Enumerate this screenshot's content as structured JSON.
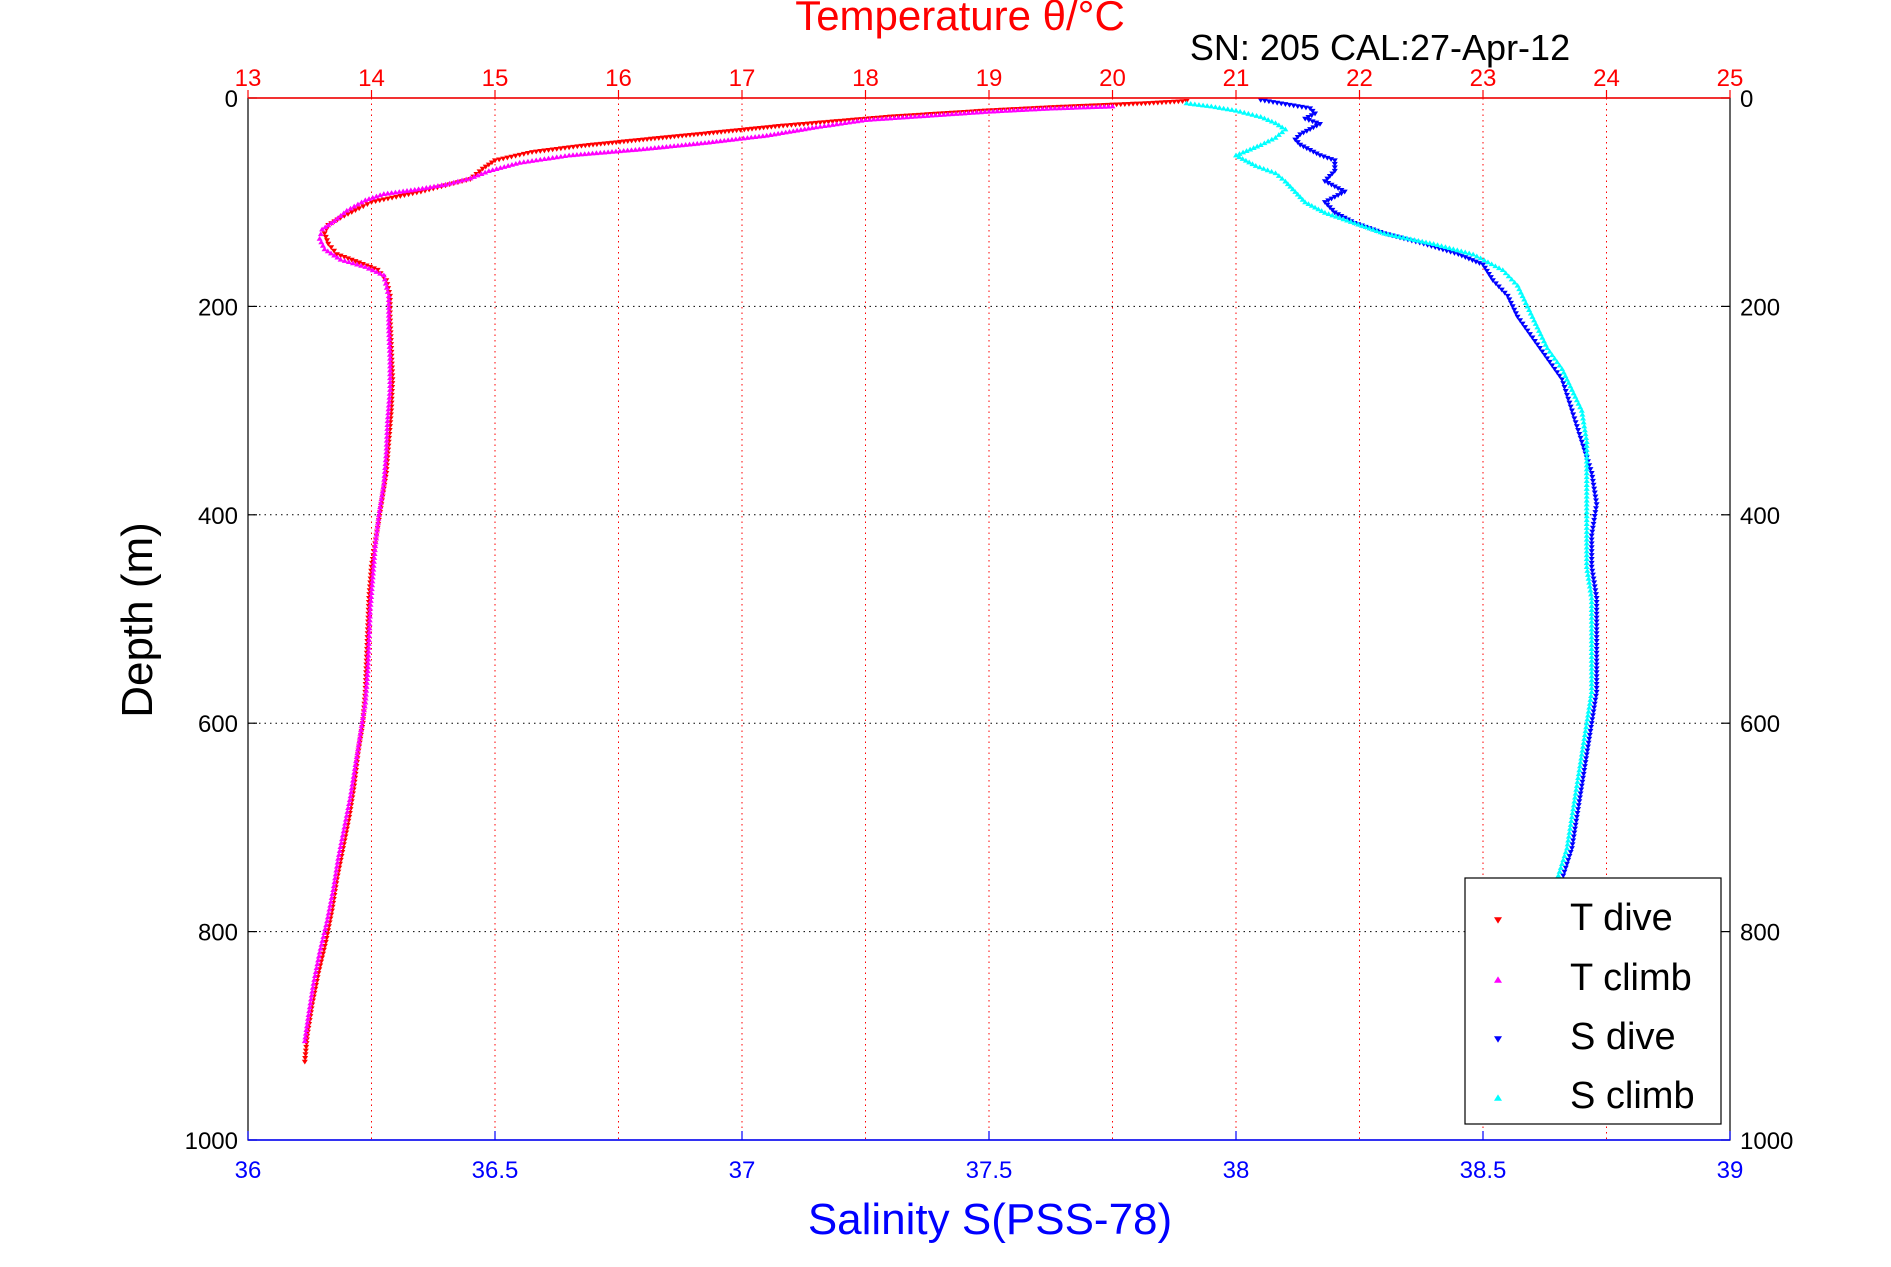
{
  "chart_data": {
    "type": "scatter",
    "title": "Temperature θ/°C",
    "subtitle": "SN: 205  CAL:27-Apr-12",
    "ylabel": "Depth (m)",
    "xlabel": "Salinity S(PSS-78)",
    "colors": {
      "temperature_axis": "#ff0000",
      "salinity_axis": "#0000ff",
      "t_dive": "#ff0000",
      "t_climb": "#ff00ff",
      "s_dive": "#0000ff",
      "s_climb": "#00ffff"
    },
    "y_axis": {
      "ylim": [
        0,
        1000
      ],
      "reversed": true,
      "ticks": [
        0,
        200,
        400,
        600,
        800,
        1000
      ],
      "tick_labels": [
        "0",
        "200",
        "400",
        "600",
        "800",
        "1000"
      ]
    },
    "x_axis_temperature": {
      "position": "top",
      "xlim": [
        13,
        25
      ],
      "ticks": [
        13,
        14,
        15,
        16,
        17,
        18,
        19,
        20,
        21,
        22,
        23,
        24,
        25
      ],
      "tick_labels": [
        "13",
        "14",
        "15",
        "16",
        "17",
        "18",
        "19",
        "20",
        "21",
        "22",
        "23",
        "24",
        "25"
      ]
    },
    "x_axis_salinity": {
      "position": "bottom",
      "xlim": [
        36,
        39
      ],
      "ticks": [
        36,
        36.5,
        37,
        37.5,
        38,
        38.5,
        39
      ],
      "tick_labels": [
        "36",
        "36.5",
        "37",
        "37.5",
        "38",
        "38.5",
        "39"
      ]
    },
    "grid": "vertical dotted at temperature ticks, horizontal dotted at depth ticks",
    "legend": {
      "position": "bottom-right",
      "entries": [
        {
          "label": "T dive",
          "marker": "triangle-down",
          "color": "#ff0000"
        },
        {
          "label": "T climb",
          "marker": "triangle-up",
          "color": "#ff00ff"
        },
        {
          "label": "S dive",
          "marker": "triangle-down",
          "color": "#0000ff"
        },
        {
          "label": "S climb",
          "marker": "triangle-up",
          "color": "#00ffff"
        }
      ]
    },
    "series": [
      {
        "name": "T dive",
        "axis": "temperature",
        "marker": "triangle-down",
        "points": [
          [
            20.6,
            3
          ],
          [
            20.3,
            5
          ],
          [
            19.9,
            7
          ],
          [
            19.5,
            9
          ],
          [
            19.0,
            12
          ],
          [
            18.6,
            15
          ],
          [
            18.2,
            18
          ],
          [
            17.8,
            22
          ],
          [
            17.3,
            27
          ],
          [
            16.8,
            33
          ],
          [
            16.2,
            40
          ],
          [
            15.7,
            46
          ],
          [
            15.3,
            52
          ],
          [
            15.0,
            60
          ],
          [
            14.9,
            68
          ],
          [
            14.8,
            78
          ],
          [
            14.6,
            84
          ],
          [
            14.4,
            90
          ],
          [
            14.2,
            95
          ],
          [
            14.0,
            100
          ],
          [
            13.9,
            106
          ],
          [
            13.75,
            115
          ],
          [
            13.65,
            122
          ],
          [
            13.62,
            130
          ],
          [
            13.65,
            140
          ],
          [
            13.72,
            150
          ],
          [
            13.9,
            158
          ],
          [
            14.05,
            165
          ],
          [
            14.12,
            175
          ],
          [
            14.15,
            190
          ],
          [
            14.15,
            210
          ],
          [
            14.16,
            240
          ],
          [
            14.17,
            270
          ],
          [
            14.16,
            300
          ],
          [
            14.14,
            330
          ],
          [
            14.12,
            360
          ],
          [
            14.08,
            390
          ],
          [
            14.04,
            420
          ],
          [
            14.0,
            450
          ],
          [
            13.98,
            480
          ],
          [
            13.97,
            510
          ],
          [
            13.96,
            540
          ],
          [
            13.95,
            570
          ],
          [
            13.93,
            600
          ],
          [
            13.89,
            630
          ],
          [
            13.86,
            660
          ],
          [
            13.82,
            690
          ],
          [
            13.77,
            720
          ],
          [
            13.72,
            750
          ],
          [
            13.68,
            780
          ],
          [
            13.63,
            810
          ],
          [
            13.57,
            840
          ],
          [
            13.52,
            870
          ],
          [
            13.48,
            900
          ],
          [
            13.46,
            925
          ]
        ]
      },
      {
        "name": "T climb",
        "axis": "temperature",
        "marker": "triangle-up",
        "points": [
          [
            20.0,
            8
          ],
          [
            19.5,
            10
          ],
          [
            19.0,
            13
          ],
          [
            18.5,
            17
          ],
          [
            18.0,
            21
          ],
          [
            17.6,
            28
          ],
          [
            17.2,
            36
          ],
          [
            16.7,
            43
          ],
          [
            16.2,
            49
          ],
          [
            15.6,
            55
          ],
          [
            15.2,
            62
          ],
          [
            14.95,
            70
          ],
          [
            14.8,
            77
          ],
          [
            14.6,
            83
          ],
          [
            14.35,
            88
          ],
          [
            14.1,
            92
          ],
          [
            13.95,
            98
          ],
          [
            13.8,
            108
          ],
          [
            13.7,
            118
          ],
          [
            13.6,
            126
          ],
          [
            13.58,
            135
          ],
          [
            13.62,
            145
          ],
          [
            13.75,
            155
          ],
          [
            13.95,
            162
          ],
          [
            14.1,
            170
          ],
          [
            14.14,
            190
          ],
          [
            14.14,
            220
          ],
          [
            14.15,
            250
          ],
          [
            14.15,
            280
          ],
          [
            14.13,
            310
          ],
          [
            14.12,
            340
          ],
          [
            14.1,
            370
          ],
          [
            14.06,
            400
          ],
          [
            14.03,
            430
          ],
          [
            14.01,
            460
          ],
          [
            13.99,
            490
          ],
          [
            13.98,
            520
          ],
          [
            13.97,
            550
          ],
          [
            13.95,
            580
          ],
          [
            13.91,
            610
          ],
          [
            13.87,
            640
          ],
          [
            13.83,
            670
          ],
          [
            13.78,
            700
          ],
          [
            13.73,
            730
          ],
          [
            13.69,
            760
          ],
          [
            13.64,
            790
          ],
          [
            13.58,
            820
          ],
          [
            13.53,
            850
          ],
          [
            13.49,
            880
          ],
          [
            13.46,
            905
          ]
        ]
      },
      {
        "name": "S dive",
        "axis": "salinity",
        "marker": "triangle-down",
        "points": [
          [
            38.05,
            2
          ],
          [
            38.1,
            6
          ],
          [
            38.15,
            10
          ],
          [
            38.16,
            15
          ],
          [
            38.14,
            20
          ],
          [
            38.17,
            25
          ],
          [
            38.15,
            30
          ],
          [
            38.13,
            35
          ],
          [
            38.12,
            40
          ],
          [
            38.13,
            45
          ],
          [
            38.15,
            50
          ],
          [
            38.17,
            55
          ],
          [
            38.2,
            60
          ],
          [
            38.2,
            70
          ],
          [
            38.18,
            80
          ],
          [
            38.22,
            90
          ],
          [
            38.18,
            100
          ],
          [
            38.2,
            110
          ],
          [
            38.24,
            120
          ],
          [
            38.3,
            130
          ],
          [
            38.38,
            140
          ],
          [
            38.45,
            150
          ],
          [
            38.5,
            160
          ],
          [
            38.52,
            175
          ],
          [
            38.55,
            190
          ],
          [
            38.57,
            210
          ],
          [
            38.6,
            230
          ],
          [
            38.63,
            250
          ],
          [
            38.66,
            270
          ],
          [
            38.68,
            300
          ],
          [
            38.7,
            330
          ],
          [
            38.72,
            360
          ],
          [
            38.73,
            390
          ],
          [
            38.72,
            420
          ],
          [
            38.72,
            450
          ],
          [
            38.73,
            480
          ],
          [
            38.73,
            510
          ],
          [
            38.73,
            540
          ],
          [
            38.73,
            570
          ],
          [
            38.72,
            600
          ],
          [
            38.71,
            630
          ],
          [
            38.7,
            660
          ],
          [
            38.69,
            690
          ],
          [
            38.68,
            720
          ],
          [
            38.66,
            750
          ]
        ]
      },
      {
        "name": "S climb",
        "axis": "salinity",
        "marker": "triangle-up",
        "points": [
          [
            37.9,
            5
          ],
          [
            37.95,
            8
          ],
          [
            38.0,
            12
          ],
          [
            38.05,
            18
          ],
          [
            38.08,
            24
          ],
          [
            38.1,
            30
          ],
          [
            38.08,
            38
          ],
          [
            38.05,
            45
          ],
          [
            38.0,
            55
          ],
          [
            38.04,
            65
          ],
          [
            38.08,
            72
          ],
          [
            38.1,
            80
          ],
          [
            38.12,
            90
          ],
          [
            38.14,
            100
          ],
          [
            38.18,
            110
          ],
          [
            38.24,
            120
          ],
          [
            38.3,
            130
          ],
          [
            38.4,
            140
          ],
          [
            38.48,
            150
          ],
          [
            38.54,
            165
          ],
          [
            38.57,
            180
          ],
          [
            38.59,
            200
          ],
          [
            38.61,
            220
          ],
          [
            38.63,
            240
          ],
          [
            38.66,
            260
          ],
          [
            38.68,
            280
          ],
          [
            38.7,
            300
          ],
          [
            38.71,
            330
          ],
          [
            38.71,
            360
          ],
          [
            38.71,
            390
          ],
          [
            38.71,
            420
          ],
          [
            38.71,
            450
          ],
          [
            38.72,
            480
          ],
          [
            38.72,
            510
          ],
          [
            38.72,
            540
          ],
          [
            38.72,
            570
          ],
          [
            38.71,
            600
          ],
          [
            38.7,
            630
          ],
          [
            38.69,
            660
          ],
          [
            38.68,
            690
          ],
          [
            38.67,
            720
          ],
          [
            38.65,
            750
          ]
        ]
      }
    ]
  }
}
